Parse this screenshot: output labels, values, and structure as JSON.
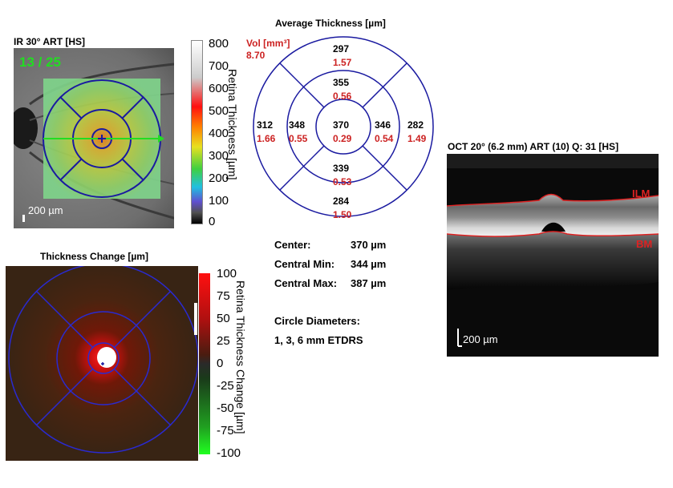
{
  "ir_panel": {
    "title": "IR 30° ART [HS]",
    "frame_counter": "13 / 25",
    "scale_label": "200 µm",
    "colorbar_ticks": [
      "800",
      "700",
      "600",
      "500",
      "400",
      "300",
      "200",
      "100",
      "0"
    ],
    "colorbar_label": "Retina Thickness [µm]"
  },
  "etdrs_chart": {
    "title": "Average Thickness [µm]",
    "vol_label": "Vol [mm³]",
    "vol_total": "8.70",
    "sectors": {
      "center": {
        "thickness": "370",
        "volume": "0.29"
      },
      "inner_superior": {
        "thickness": "355",
        "volume": "0.56"
      },
      "inner_inferior": {
        "thickness": "339",
        "volume": "0.53"
      },
      "inner_left": {
        "thickness": "348",
        "volume": "0.55"
      },
      "inner_right": {
        "thickness": "346",
        "volume": "0.54"
      },
      "outer_superior": {
        "thickness": "297",
        "volume": "1.57"
      },
      "outer_inferior": {
        "thickness": "284",
        "volume": "1.50"
      },
      "outer_left": {
        "thickness": "312",
        "volume": "1.66"
      },
      "outer_right": {
        "thickness": "282",
        "volume": "1.49"
      }
    }
  },
  "stats": {
    "center_label": "Center:",
    "center_value": "370 µm",
    "min_label": "Central Min:",
    "min_value": "344 µm",
    "max_label": "Central Max:",
    "max_value": "387 µm",
    "diam_title": "Circle Diameters:",
    "diam_value": "1, 3, 6 mm ETDRS"
  },
  "change_panel": {
    "title": "Thickness Change [µm]",
    "colorbar_ticks": [
      "100",
      "75",
      "50",
      "25",
      "0",
      "-25",
      "-50",
      "-75",
      "-100"
    ],
    "colorbar_label": "Retina Thickness Change [µm]"
  },
  "oct_panel": {
    "title": "OCT 20° (6.2 mm) ART (10) Q: 31 [HS]",
    "ilm_label": "ILM",
    "bm_label": "BM",
    "scale_label": "200 µm"
  },
  "colors": {
    "ring": "#1a1aa0",
    "volume_red": "#cc2222",
    "frame_green": "#22dd22",
    "oct_line": "#dd2222"
  }
}
